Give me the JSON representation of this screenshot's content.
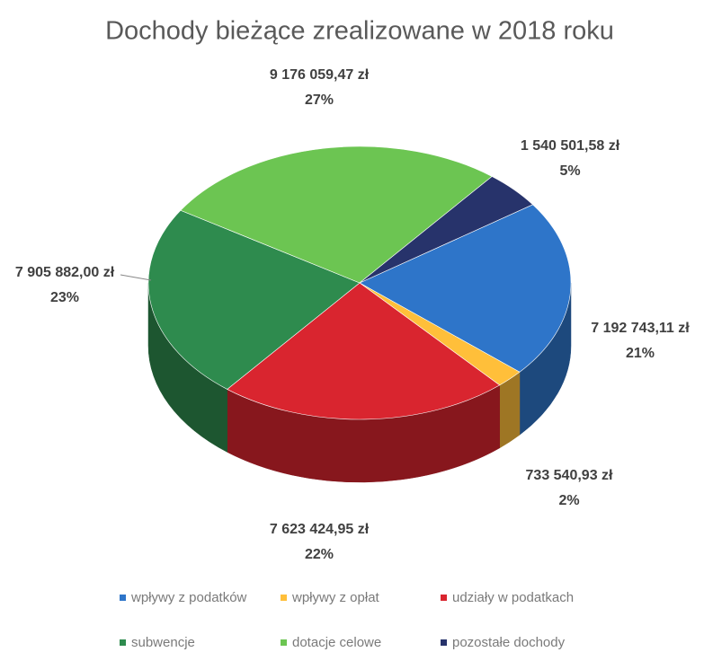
{
  "chart_data": {
    "type": "pie",
    "title": "Dochody bieżące zrealizowane w 2018 roku",
    "categories": [
      "wpływy z podatków",
      "wpływy z opłat",
      "udziały w podatkach",
      "subwencje",
      "dotacje celowe",
      "pozostałe dochody"
    ],
    "values": [
      7192743.11,
      733540.93,
      7623424.95,
      7905882.0,
      9176059.47,
      1540501.58
    ],
    "value_labels": [
      "7 192 743,11 zł",
      "733 540,93 zł",
      "7 623 424,95 zł",
      "7 905 882,00 zł",
      "9 176 059,47 zł",
      "1 540 501,58 zł"
    ],
    "percentages": [
      21,
      2,
      22,
      23,
      27,
      5
    ],
    "percentage_labels": [
      "21%",
      "2%",
      "22%",
      "23%",
      "27%",
      "5%"
    ],
    "colors": [
      "#2e75c9",
      "#ffbf3a",
      "#d9252f",
      "#2e8b4e",
      "#6cc552",
      "#27336b"
    ],
    "legend": "bottom"
  }
}
